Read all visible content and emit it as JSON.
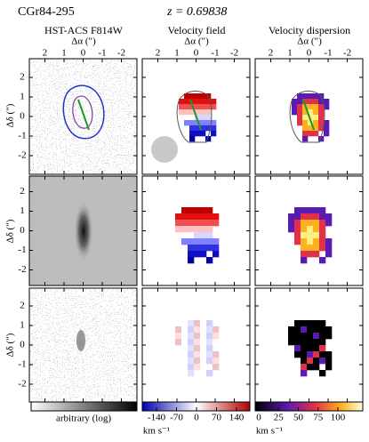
{
  "header": {
    "title": "CGr84-295",
    "redshift": "z = 0.69838"
  },
  "columns": [
    {
      "title": "HST-ACS F814W",
      "x_label": "Δα (″)"
    },
    {
      "title": "Velocity field",
      "x_label": "Δα (″)"
    },
    {
      "title": "Velocity dispersion",
      "x_label": "Δα (″)"
    }
  ],
  "axes": {
    "y_label": "Δδ (″)",
    "x_ticks": [
      2,
      1,
      0,
      -1,
      -2
    ],
    "y_ticks": [
      2,
      1,
      0,
      -1,
      -2
    ]
  },
  "colorbars": [
    {
      "label": "arbitrary (log)"
    },
    {
      "label": "km s⁻¹",
      "ticks": [
        -140,
        -70,
        0,
        70,
        140
      ]
    },
    {
      "label": "km s⁻¹",
      "ticks": [
        0,
        25,
        50,
        75,
        100
      ]
    }
  ]
}
